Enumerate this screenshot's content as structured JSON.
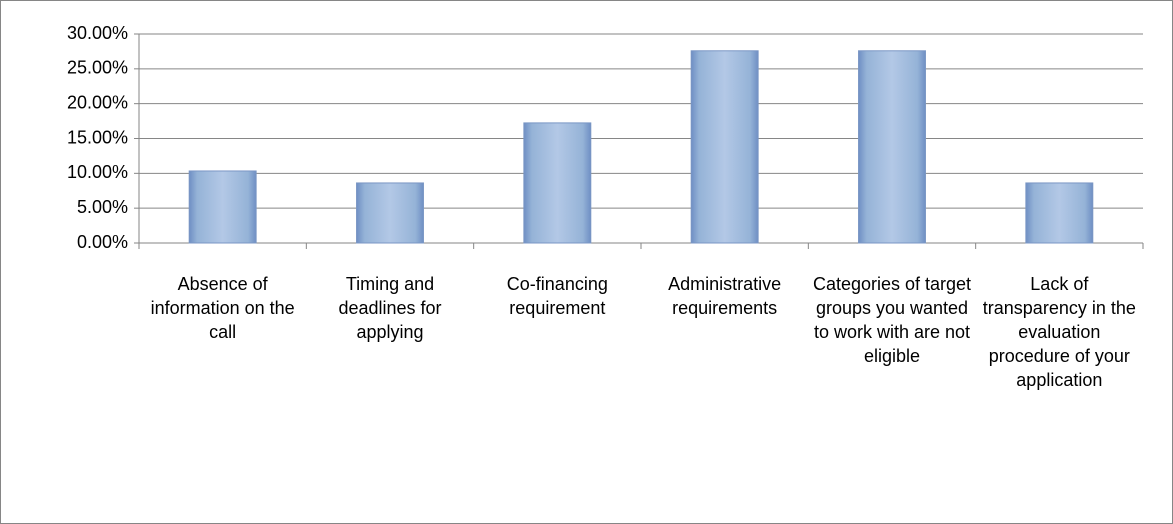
{
  "chart_data": {
    "type": "bar",
    "categories": [
      "Absence of information on the call",
      "Timing and deadlines for applying",
      "Co-financing requirement",
      "Administrative requirements",
      "Categories of target groups you wanted to work with are not eligible",
      "Lack of transparency in the evaluation procedure of your application"
    ],
    "values": [
      10.34,
      8.62,
      17.24,
      27.59,
      27.59,
      8.62
    ],
    "color": "#95b3d7",
    "ylim": [
      0,
      30
    ],
    "yticks": [
      {
        "value": 0,
        "label": "0.00%"
      },
      {
        "value": 5,
        "label": "5.00%"
      },
      {
        "value": 10,
        "label": "10.00%"
      },
      {
        "value": 15,
        "label": "15.00%"
      },
      {
        "value": 20,
        "label": "20.00%"
      },
      {
        "value": 25,
        "label": "25.00%"
      },
      {
        "value": 30,
        "label": "30.00%"
      }
    ],
    "grid": true
  }
}
